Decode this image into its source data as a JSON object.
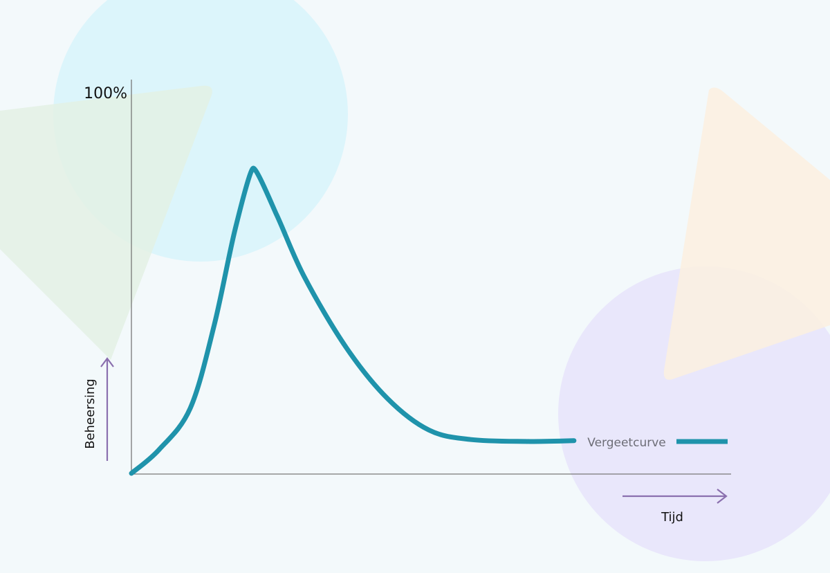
{
  "chart_data": {
    "type": "line",
    "title": "",
    "xlabel": "Tijd",
    "ylabel": "Beheersing",
    "y_tick_labels": [
      "100%"
    ],
    "ylim": [
      0,
      100
    ],
    "xlim": [
      0,
      100
    ],
    "grid": false,
    "legend": {
      "placement": "bottom-right",
      "entries": [
        "Vergeetcurve"
      ]
    },
    "series": [
      {
        "name": "Vergeetcurve",
        "color": "#1f93ab",
        "x": [
          0,
          4.6,
          9.8,
          13.8,
          17.3,
          20.3,
          24.2,
          28.8,
          35.8,
          42.7,
          49.6,
          56.5,
          65.7,
          73.8
        ],
        "y": [
          0,
          6,
          16.5,
          37.6,
          62,
          77.5,
          65.7,
          50,
          32,
          19,
          11,
          8.6,
          8.1,
          8.3
        ]
      }
    ]
  },
  "colors": {
    "background": "#f3f9fb",
    "curve": "#1f93ab",
    "axis": "#777777",
    "arrow": "#8a6fae",
    "legend_text": "#6d6d76",
    "circle_blue": "#dcf5fb",
    "circle_purple": "#e9e7fb",
    "triangle_green": "#e6f3e8",
    "triangle_orange": "#fbf1e1"
  }
}
